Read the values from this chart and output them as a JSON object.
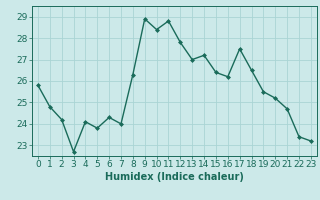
{
  "x": [
    0,
    1,
    2,
    3,
    4,
    5,
    6,
    7,
    8,
    9,
    10,
    11,
    12,
    13,
    14,
    15,
    16,
    17,
    18,
    19,
    20,
    21,
    22,
    23
  ],
  "y": [
    25.8,
    24.8,
    24.2,
    22.7,
    24.1,
    23.8,
    24.3,
    24.0,
    26.3,
    28.9,
    28.4,
    28.8,
    27.8,
    27.0,
    27.2,
    26.4,
    26.2,
    27.5,
    26.5,
    25.5,
    25.2,
    24.7,
    23.4,
    23.2
  ],
  "line_color": "#1a6b5a",
  "marker": "D",
  "marker_size": 2.0,
  "line_width": 1.0,
  "xlabel": "Humidex (Indice chaleur)",
  "ylim": [
    22.5,
    29.5
  ],
  "yticks": [
    23,
    24,
    25,
    26,
    27,
    28,
    29
  ],
  "xlim": [
    -0.5,
    23.5
  ],
  "xticks": [
    0,
    1,
    2,
    3,
    4,
    5,
    6,
    7,
    8,
    9,
    10,
    11,
    12,
    13,
    14,
    15,
    16,
    17,
    18,
    19,
    20,
    21,
    22,
    23
  ],
  "bg_color": "#cce9e9",
  "grid_color": "#aad4d4",
  "xlabel_fontsize": 7,
  "tick_fontsize": 6.5
}
